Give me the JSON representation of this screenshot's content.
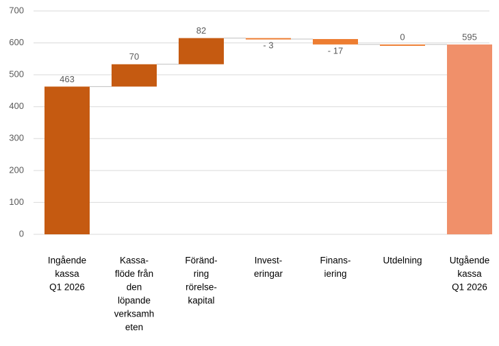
{
  "chart_data": {
    "type": "waterfall",
    "categories": [
      [
        "Ingående",
        "kassa",
        "Q1 2026"
      ],
      [
        "Kassa-",
        "flöde från",
        "den",
        "löpande",
        "verksamh",
        "eten"
      ],
      [
        "Föränd-",
        "ring",
        "rörelse-",
        "kapital"
      ],
      [
        "Invest-",
        "eringar"
      ],
      [
        "Finans-",
        "iering"
      ],
      [
        "Utdelning"
      ],
      [
        "Utgående",
        "kassa",
        "Q1 2026"
      ]
    ],
    "values": [
      463,
      70,
      82,
      -3,
      -17,
      0,
      595
    ],
    "value_labels": [
      "463",
      "70",
      "82",
      "- 3",
      "- 17",
      "0",
      "595"
    ],
    "measures": [
      "absolute",
      "relative",
      "relative",
      "relative",
      "relative",
      "relative",
      "total"
    ],
    "colors": [
      "#c55a11",
      "#c55a11",
      "#c55a11",
      "#ed7d31",
      "#ed7d31",
      "#ed7d31",
      "#f0906a"
    ],
    "ylim": [
      0,
      700
    ],
    "yticks": [
      0,
      100,
      200,
      300,
      400,
      500,
      600,
      700
    ],
    "grid": true
  }
}
